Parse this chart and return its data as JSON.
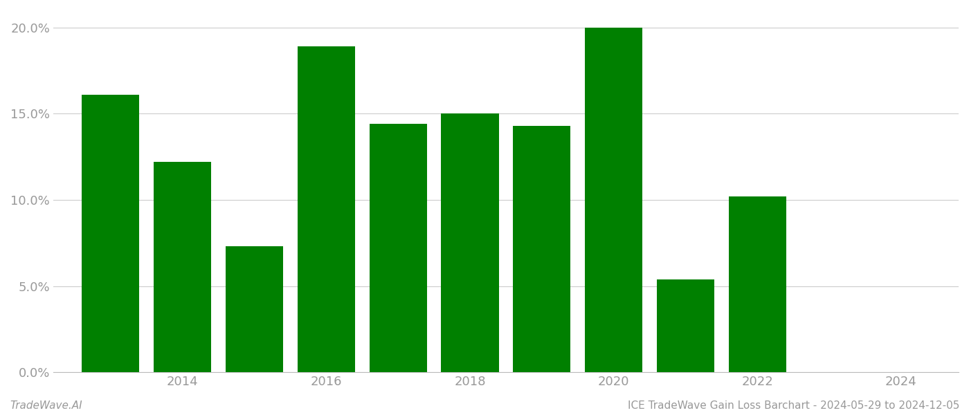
{
  "years": [
    2013,
    2014,
    2015,
    2016,
    2017,
    2018,
    2019,
    2020,
    2021,
    2022,
    2023
  ],
  "values": [
    0.161,
    0.122,
    0.073,
    0.189,
    0.144,
    0.15,
    0.143,
    0.2,
    0.054,
    0.102,
    0.0
  ],
  "bar_color": "#008000",
  "background_color": "#ffffff",
  "ylim": [
    0,
    0.21
  ],
  "yticks": [
    0.0,
    0.05,
    0.1,
    0.15,
    0.2
  ],
  "ytick_labels": [
    "0.0%",
    "5.0%",
    "10.0%",
    "15.0%",
    "20.0%"
  ],
  "xlim": [
    2012.2,
    2024.8
  ],
  "xticks": [
    2014,
    2016,
    2018,
    2020,
    2022,
    2024
  ],
  "footer_left": "TradeWave.AI",
  "footer_right": "ICE TradeWave Gain Loss Barchart - 2024-05-29 to 2024-12-05",
  "grid_color": "#cccccc",
  "tick_color": "#999999",
  "spine_color": "#bbbbbb",
  "bar_width": 0.8
}
